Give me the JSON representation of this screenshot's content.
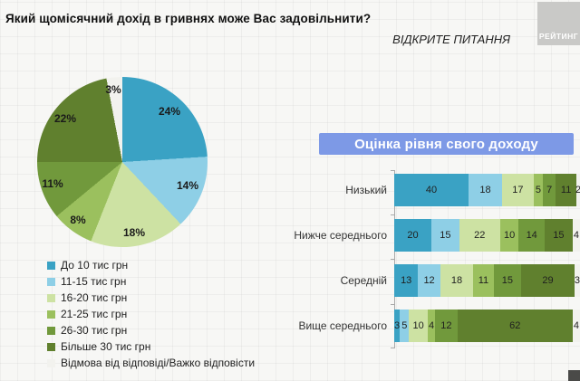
{
  "header": {
    "title": "Який щомісячний дохід в гривнях може Вас задовільнити?",
    "note": "ВІДКРИТЕ ПИТАННЯ",
    "logo": "РЕЙТИНГ"
  },
  "colors": {
    "palette": [
      "#3aa2c4",
      "#8ecfe6",
      "#cde2a3",
      "#9bc05e",
      "#71993c",
      "#60802e",
      "#f2f2ee"
    ],
    "header_bg": "#7d99e6",
    "logo_bg": "#c9c9c7"
  },
  "legend": [
    "До 10 тис грн",
    "11-15 тис грн",
    "16-20 тис грн",
    "21-25 тис грн",
    "26-30 тис грн",
    "Більше 30 тис грн",
    "Відмова від відповіді/Важко відповісти"
  ],
  "bar_section_title": "Оцінка рівня свого доходу",
  "chart_data": [
    {
      "type": "pie",
      "title": "Який щомісячний дохід в гривнях може Вас задовільнити?",
      "categories": [
        "До 10 тис грн",
        "11-15 тис грн",
        "16-20 тис грн",
        "21-25 тис грн",
        "26-30 тис грн",
        "Більше 30 тис грн",
        "Відмова від відповіді/Важко відповісти"
      ],
      "values": [
        24,
        14,
        18,
        8,
        11,
        22,
        3
      ],
      "labels": [
        "24%",
        "14%",
        "18%",
        "8%",
        "11%",
        "22%",
        "3%"
      ],
      "legend_position": "bottom-left"
    },
    {
      "type": "bar",
      "stacked": true,
      "orientation": "horizontal",
      "title": "Оцінка рівня свого доходу",
      "xlim": [
        0,
        100
      ],
      "categories": [
        "Низький",
        "Нижче середнього",
        "Середній",
        "Вище середнього"
      ],
      "series": [
        {
          "name": "До 10 тис грн",
          "values": [
            40,
            20,
            13,
            3
          ]
        },
        {
          "name": "11-15 тис грн",
          "values": [
            18,
            15,
            12,
            5
          ]
        },
        {
          "name": "16-20 тис грн",
          "values": [
            17,
            22,
            18,
            10
          ]
        },
        {
          "name": "21-25 тис грн",
          "values": [
            5,
            10,
            11,
            4
          ]
        },
        {
          "name": "26-30 тис грн",
          "values": [
            7,
            14,
            15,
            12
          ]
        },
        {
          "name": "Більше 30 тис грн",
          "values": [
            11,
            15,
            29,
            62
          ]
        },
        {
          "name": "Відмова від відповіді/Важко відповісти",
          "values": [
            2,
            4,
            3,
            4
          ]
        }
      ]
    }
  ]
}
